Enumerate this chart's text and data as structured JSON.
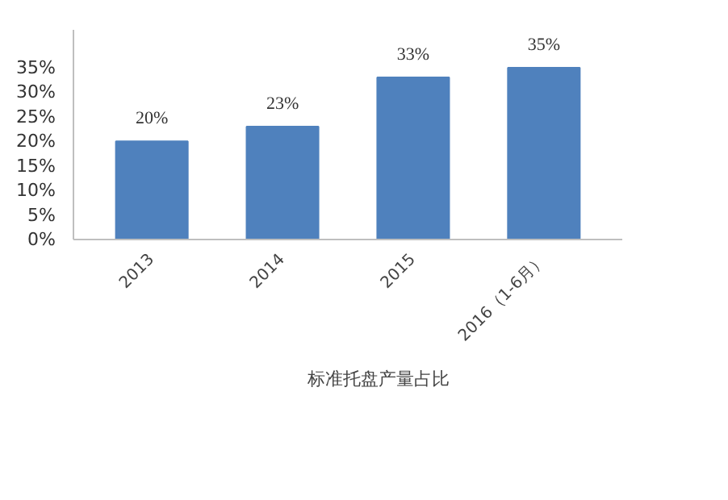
{
  "chart_data": {
    "type": "bar",
    "categories": [
      "2013",
      "2014",
      "2015",
      "2016（1-6月）"
    ],
    "series": [
      {
        "name": "标准托盘产量占比",
        "color": "#4f81bd",
        "values": [
          20,
          23,
          33,
          35
        ],
        "value_labels": [
          "20%",
          "23%",
          "33%",
          "35%"
        ]
      }
    ],
    "ylim": [
      0,
      35
    ],
    "yticks": [
      {
        "value": 0,
        "label": "0%"
      },
      {
        "value": 5,
        "label": "5%"
      },
      {
        "value": 10,
        "label": "10%"
      },
      {
        "value": 15,
        "label": "15%"
      },
      {
        "value": 20,
        "label": "20%"
      },
      {
        "value": 25,
        "label": "25%"
      },
      {
        "value": 30,
        "label": "30%"
      },
      {
        "value": 35,
        "label": "35%"
      }
    ],
    "grid": false,
    "legend": "bottom"
  }
}
